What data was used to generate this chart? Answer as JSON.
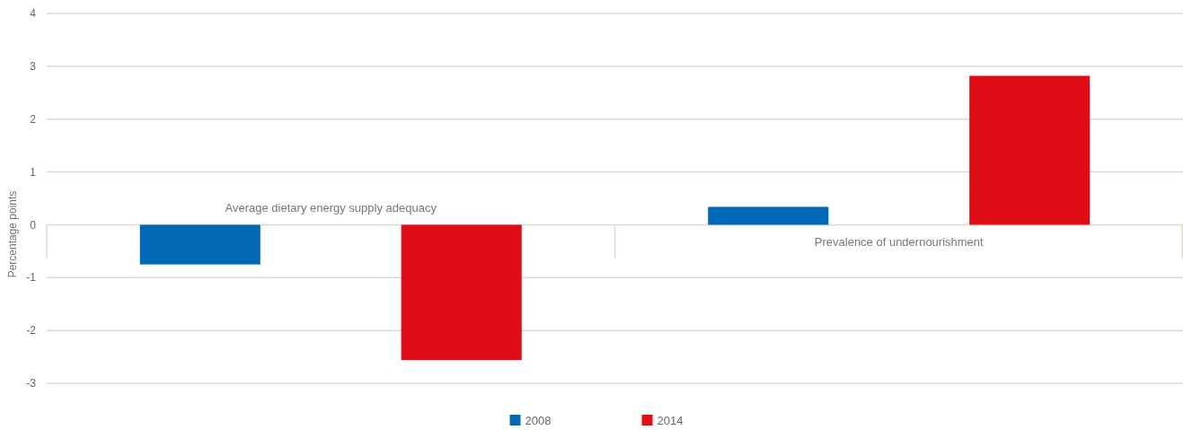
{
  "chart_data": {
    "type": "bar",
    "ylabel": "Percentage points",
    "categories": [
      "Average dietary energy supply adequacy",
      "Prevalence of undernourishment"
    ],
    "series": [
      {
        "name": "2008",
        "color": "#0068b4",
        "values": [
          -0.75,
          0.34
        ]
      },
      {
        "name": "2014",
        "color": "#de0d16",
        "values": [
          -2.56,
          2.82
        ]
      }
    ],
    "ylim": [
      -3,
      4
    ],
    "yticks": [
      -3,
      -2,
      -1,
      0,
      1,
      2,
      3,
      4
    ],
    "grid": "y",
    "legend": "bottom"
  }
}
